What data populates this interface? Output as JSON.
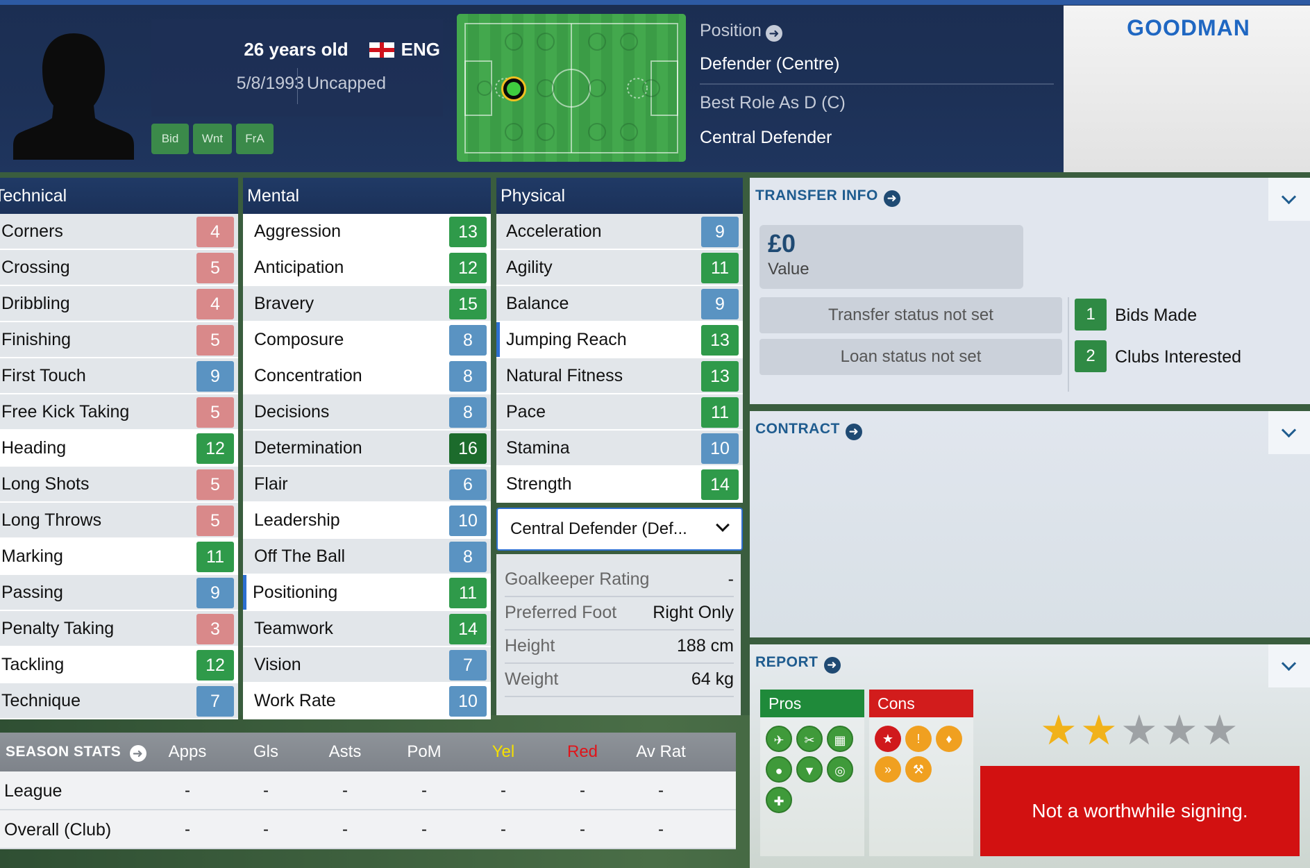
{
  "player": {
    "name": "GOODMAN",
    "age": "26 years old",
    "nationality": "ENG",
    "dob": "5/8/1993",
    "caps": "Uncapped",
    "tags": [
      "Bid",
      "Wnt",
      "FrA"
    ]
  },
  "position": {
    "label": "Position",
    "value": "Defender (Centre)",
    "best_role_label": "Best Role As D (C)",
    "best_role": "Central Defender"
  },
  "technical": {
    "title": "Technical",
    "rows": [
      {
        "label": "Corners",
        "value": "4"
      },
      {
        "label": "Crossing",
        "value": "5"
      },
      {
        "label": "Dribbling",
        "value": "4"
      },
      {
        "label": "Finishing",
        "value": "5"
      },
      {
        "label": "First Touch",
        "value": "9"
      },
      {
        "label": "Free Kick Taking",
        "value": "5"
      },
      {
        "label": "Heading",
        "value": "12"
      },
      {
        "label": "Long Shots",
        "value": "5"
      },
      {
        "label": "Long Throws",
        "value": "5"
      },
      {
        "label": "Marking",
        "value": "11"
      },
      {
        "label": "Passing",
        "value": "9"
      },
      {
        "label": "Penalty Taking",
        "value": "3"
      },
      {
        "label": "Tackling",
        "value": "12"
      },
      {
        "label": "Technique",
        "value": "7"
      }
    ]
  },
  "mental": {
    "title": "Mental",
    "rows": [
      {
        "label": "Aggression",
        "value": "13"
      },
      {
        "label": "Anticipation",
        "value": "12"
      },
      {
        "label": "Bravery",
        "value": "15"
      },
      {
        "label": "Composure",
        "value": "8"
      },
      {
        "label": "Concentration",
        "value": "8"
      },
      {
        "label": "Decisions",
        "value": "8"
      },
      {
        "label": "Determination",
        "value": "16"
      },
      {
        "label": "Flair",
        "value": "6"
      },
      {
        "label": "Leadership",
        "value": "10"
      },
      {
        "label": "Off The Ball",
        "value": "8"
      },
      {
        "label": "Positioning",
        "value": "11"
      },
      {
        "label": "Teamwork",
        "value": "14"
      },
      {
        "label": "Vision",
        "value": "7"
      },
      {
        "label": "Work Rate",
        "value": "10"
      }
    ]
  },
  "physical": {
    "title": "Physical",
    "rows": [
      {
        "label": "Acceleration",
        "value": "9"
      },
      {
        "label": "Agility",
        "value": "11"
      },
      {
        "label": "Balance",
        "value": "9"
      },
      {
        "label": "Jumping Reach",
        "value": "13"
      },
      {
        "label": "Natural Fitness",
        "value": "13"
      },
      {
        "label": "Pace",
        "value": "11"
      },
      {
        "label": "Stamina",
        "value": "10"
      },
      {
        "label": "Strength",
        "value": "14"
      }
    ],
    "role_select": "Central Defender (Def...",
    "info": [
      {
        "label": "Goalkeeper Rating",
        "value": "-"
      },
      {
        "label": "Preferred Foot",
        "value": "Right Only"
      },
      {
        "label": "Height",
        "value": "188 cm"
      },
      {
        "label": "Weight",
        "value": "64 kg"
      }
    ]
  },
  "colors": {
    "low": "#d9898a",
    "mid": "#5a93c2",
    "good": "#2f9a4a",
    "high": "#1c6b2c"
  },
  "season": {
    "title": "SEASON STATS",
    "columns": [
      "Apps",
      "Gls",
      "Asts",
      "PoM",
      "Yel",
      "Red",
      "Av Rat"
    ],
    "column_colors": [
      "#ffffff",
      "#ffffff",
      "#ffffff",
      "#ffffff",
      "#f5e000",
      "#e0141a",
      "#ffffff"
    ],
    "rows": [
      {
        "label": "League",
        "values": [
          "-",
          "-",
          "-",
          "-",
          "-",
          "-",
          "-"
        ]
      },
      {
        "label": "Overall (Club)",
        "values": [
          "-",
          "-",
          "-",
          "-",
          "-",
          "-",
          "-"
        ]
      }
    ]
  },
  "transfer": {
    "title": "TRANSFER INFO",
    "value_amount": "£0",
    "value_label": "Value",
    "transfer_status": "Transfer status not set",
    "loan_status": "Loan status not set",
    "bids_count": "1",
    "bids_label": "Bids Made",
    "clubs_count": "2",
    "clubs_label": "Clubs Interested"
  },
  "contract": {
    "title": "CONTRACT"
  },
  "report": {
    "title": "REPORT",
    "pros_label": "Pros",
    "cons_label": "Cons",
    "pros_icons": [
      "aerial-icon",
      "tackle-icon",
      "tactics-board-icon",
      "head-icon",
      "shield-icon",
      "target-icon",
      "bandage-icon"
    ],
    "cons_icons": [
      "star-icon",
      "alert-ball-icon",
      "foot-icon",
      "dribble-icon",
      "wrench-icon"
    ],
    "rating_stars": 2,
    "rating_max": 5,
    "verdict": "Not a worthwhile signing."
  }
}
